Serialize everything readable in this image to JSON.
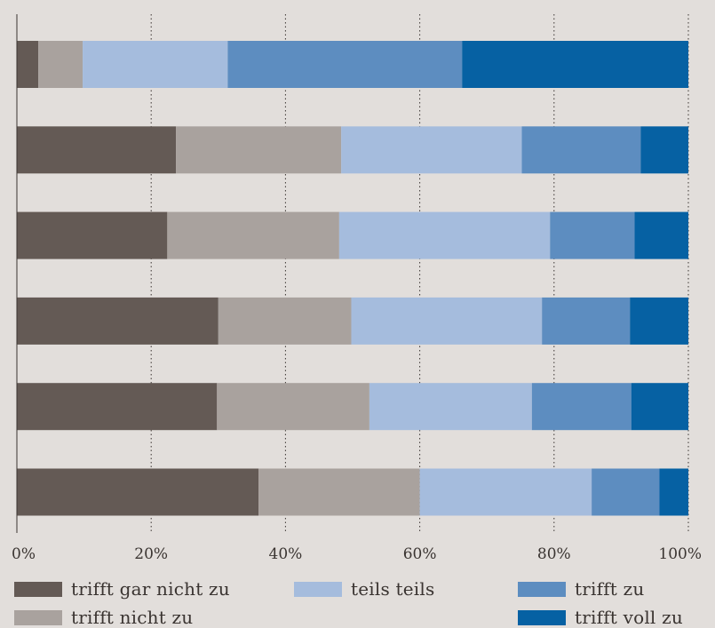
{
  "chart_data": {
    "type": "bar",
    "orientation": "horizontal",
    "stacked": true,
    "percent": true,
    "categories": [
      "",
      "",
      "",
      "",
      "",
      ""
    ],
    "xlim": [
      0,
      100
    ],
    "x_ticks": [
      "0%",
      "20%",
      "40%",
      "60%",
      "80%",
      "100%"
    ],
    "grid": "vertical dotted",
    "legend_position": "bottom",
    "series": [
      {
        "name": "trifft gar nicht zu",
        "color": "#645a55",
        "values": [
          3.2,
          23.7,
          22.4,
          30.0,
          29.8,
          36.0
        ]
      },
      {
        "name": "trifft nicht zu",
        "color": "#a9a29e",
        "values": [
          6.6,
          24.6,
          25.6,
          19.8,
          22.7,
          24.0
        ]
      },
      {
        "name": "teils teils",
        "color": "#a5bcdd",
        "values": [
          21.6,
          26.9,
          31.4,
          28.4,
          24.2,
          25.6
        ]
      },
      {
        "name": "trifft zu",
        "color": "#5d8dc0",
        "values": [
          34.9,
          17.7,
          12.6,
          13.1,
          14.8,
          10.1
        ]
      },
      {
        "name": "trifft voll zu",
        "color": "#0661a3",
        "values": [
          33.7,
          7.1,
          8.0,
          8.7,
          8.5,
          4.3
        ]
      }
    ]
  }
}
